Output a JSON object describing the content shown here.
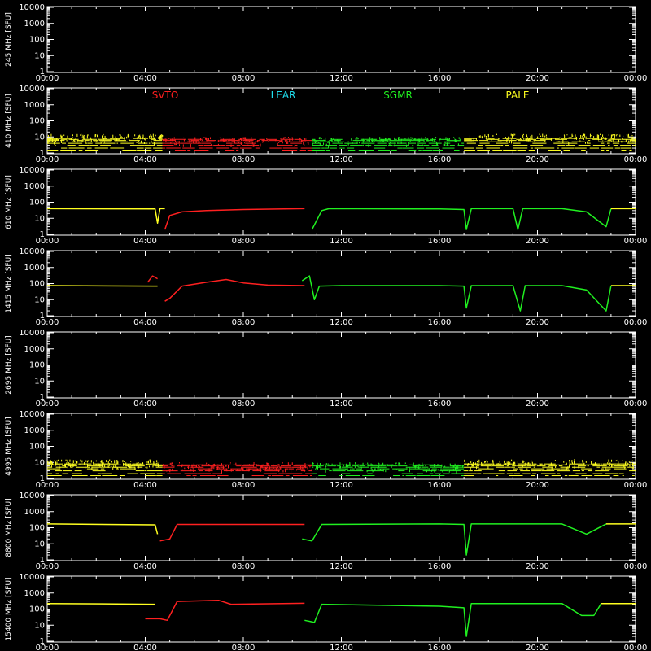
{
  "chart_data": {
    "type": "line",
    "x_ticks": [
      "00:00",
      "04:00",
      "08:00",
      "12:00",
      "16:00",
      "20:00",
      "00:00"
    ],
    "x_range_hours": [
      0,
      24
    ],
    "y_ticks": [
      "10000",
      "1000",
      "100",
      "10",
      "1"
    ],
    "y_scale": "log",
    "ylim": [
      1,
      10000
    ],
    "grid": false,
    "colors": {
      "background": "#000000",
      "axes": "#ffffff",
      "SVTO": "#ff2020",
      "LEAR": "#20e0f0",
      "SGMR": "#20f020",
      "PALE": "#ffff20"
    },
    "stations": [
      {
        "name": "SVTO",
        "color": "#ff2020"
      },
      {
        "name": "LEAR",
        "color": "#20e0f0"
      },
      {
        "name": "SGMR",
        "color": "#20f020"
      },
      {
        "name": "PALE",
        "color": "#ffff20"
      }
    ],
    "panels": [
      {
        "ylabel": "245 MHz [SFU]",
        "series": []
      },
      {
        "ylabel": "410 MHz [SFU]",
        "noisy": true,
        "series": [
          {
            "station": "PALE",
            "points": [
              [
                0,
                6
              ],
              [
                4.7,
                6
              ]
            ]
          },
          {
            "station": "SVTO",
            "points": [
              [
                4.7,
                4
              ],
              [
                10.8,
                4
              ]
            ]
          },
          {
            "station": "SGMR",
            "points": [
              [
                10.8,
                4
              ],
              [
                17,
                4
              ]
            ]
          },
          {
            "station": "PALE",
            "points": [
              [
                17,
                6
              ],
              [
                24,
                6
              ]
            ]
          }
        ]
      },
      {
        "ylabel": "610 MHz [SFU]",
        "series": [
          {
            "station": "PALE",
            "points": [
              [
                0,
                40
              ],
              [
                4.4,
                38
              ],
              [
                4.5,
                5
              ],
              [
                4.6,
                40
              ],
              [
                4.8,
                40
              ]
            ]
          },
          {
            "station": "SVTO",
            "points": [
              [
                4.8,
                2
              ],
              [
                5,
                15
              ],
              [
                5.5,
                25
              ],
              [
                6.5,
                30
              ],
              [
                8,
                35
              ],
              [
                10.5,
                40
              ]
            ]
          },
          {
            "station": "SGMR",
            "points": [
              [
                10.8,
                2
              ],
              [
                11.2,
                30
              ],
              [
                11.5,
                40
              ],
              [
                16,
                38
              ],
              [
                17,
                35
              ],
              [
                17.1,
                2
              ],
              [
                17.3,
                40
              ],
              [
                19,
                40
              ],
              [
                19.2,
                2
              ],
              [
                19.4,
                40
              ],
              [
                21,
                40
              ],
              [
                22,
                25
              ],
              [
                22.8,
                3
              ],
              [
                23,
                40
              ]
            ]
          },
          {
            "station": "PALE",
            "points": [
              [
                23,
                40
              ],
              [
                24,
                40
              ]
            ]
          }
        ]
      },
      {
        "ylabel": "1415 MHz [SFU]",
        "series": [
          {
            "station": "PALE",
            "points": [
              [
                0,
                75
              ],
              [
                4.3,
                70
              ],
              [
                4.5,
                70
              ]
            ]
          },
          {
            "station": "SVTO",
            "points": [
              [
                4.1,
                120
              ],
              [
                4.3,
                300
              ],
              [
                4.5,
                200
              ]
            ]
          },
          {
            "station": "SVTO",
            "points": [
              [
                4.8,
                8
              ],
              [
                5,
                12
              ],
              [
                5.5,
                70
              ],
              [
                6.5,
                120
              ],
              [
                7.3,
                180
              ],
              [
                8,
                110
              ],
              [
                9,
                80
              ],
              [
                10.5,
                75
              ]
            ]
          },
          {
            "station": "SGMR",
            "points": [
              [
                10.4,
                150
              ],
              [
                10.7,
                300
              ],
              [
                10.9,
                10
              ],
              [
                11.1,
                70
              ],
              [
                12,
                75
              ],
              [
                16,
                75
              ],
              [
                17,
                70
              ],
              [
                17.1,
                3
              ],
              [
                17.3,
                75
              ],
              [
                19,
                75
              ],
              [
                19.3,
                2
              ],
              [
                19.5,
                75
              ],
              [
                21,
                75
              ],
              [
                22,
                40
              ],
              [
                22.8,
                2
              ],
              [
                23,
                75
              ]
            ]
          },
          {
            "station": "PALE",
            "points": [
              [
                23,
                75
              ],
              [
                24,
                75
              ]
            ]
          }
        ]
      },
      {
        "ylabel": "2695 MHz [SFU]",
        "series": []
      },
      {
        "ylabel": "4995 MHz [SFU]",
        "noisy": true,
        "series": [
          {
            "station": "PALE",
            "points": [
              [
                0,
                6
              ],
              [
                4.7,
                6
              ]
            ]
          },
          {
            "station": "SVTO",
            "points": [
              [
                4.7,
                4
              ],
              [
                10.8,
                4
              ]
            ]
          },
          {
            "station": "SGMR",
            "points": [
              [
                10.8,
                4
              ],
              [
                17,
                4
              ]
            ]
          },
          {
            "station": "PALE",
            "points": [
              [
                17,
                6
              ],
              [
                24,
                6
              ]
            ]
          }
        ]
      },
      {
        "ylabel": "8800 MHz [SFU]",
        "series": [
          {
            "station": "PALE",
            "points": [
              [
                0,
                170
              ],
              [
                4.4,
                150
              ],
              [
                4.5,
                40
              ]
            ]
          },
          {
            "station": "SVTO",
            "points": [
              [
                4.6,
                15
              ],
              [
                5,
                20
              ],
              [
                5.3,
                160
              ],
              [
                8,
                160
              ],
              [
                10.5,
                160
              ]
            ]
          },
          {
            "station": "SGMR",
            "points": [
              [
                10.4,
                20
              ],
              [
                10.8,
                15
              ],
              [
                11.2,
                160
              ],
              [
                16,
                170
              ],
              [
                17,
                160
              ],
              [
                17.1,
                2
              ],
              [
                17.3,
                170
              ],
              [
                21,
                170
              ],
              [
                22,
                40
              ],
              [
                22.8,
                170
              ]
            ]
          },
          {
            "station": "PALE",
            "points": [
              [
                22.8,
                170
              ],
              [
                24,
                170
              ]
            ]
          }
        ]
      },
      {
        "ylabel": "15400 MHz [SFU]",
        "series": [
          {
            "station": "PALE",
            "points": [
              [
                0,
                220
              ],
              [
                4.4,
                200
              ]
            ]
          },
          {
            "station": "SVTO",
            "points": [
              [
                4.0,
                25
              ],
              [
                4.6,
                25
              ],
              [
                4.9,
                20
              ],
              [
                5.3,
                300
              ],
              [
                7,
                350
              ],
              [
                7.5,
                200
              ],
              [
                10.5,
                230
              ]
            ]
          },
          {
            "station": "SGMR",
            "points": [
              [
                10.5,
                20
              ],
              [
                10.9,
                15
              ],
              [
                11.2,
                200
              ],
              [
                16,
                150
              ],
              [
                17,
                120
              ],
              [
                17.1,
                2
              ],
              [
                17.3,
                220
              ],
              [
                21,
                220
              ],
              [
                21.8,
                40
              ],
              [
                22.3,
                40
              ],
              [
                22.6,
                220
              ]
            ]
          },
          {
            "station": "PALE",
            "points": [
              [
                22.6,
                220
              ],
              [
                24,
                220
              ]
            ]
          }
        ]
      }
    ]
  }
}
